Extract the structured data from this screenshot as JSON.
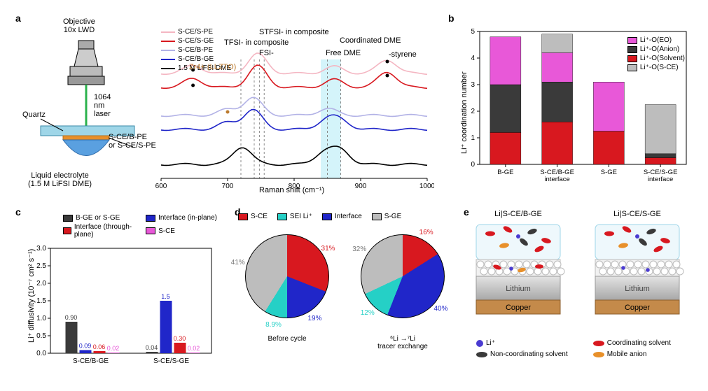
{
  "palette": {
    "pink": "#f4b6c2",
    "red": "#d8181f",
    "lightblue": "#b2b2e6",
    "blue": "#2026c9",
    "black": "#000000",
    "magenta": "#e858d8",
    "darkgray": "#3a3a3a",
    "lightgray": "#bdbdbd",
    "cyan": "#25d0c6",
    "copper": "#c48a4a",
    "lithium": "#b9b9b9",
    "quartz": "#9fd6e8",
    "liquid": "#5aa0e0",
    "llzto": "#bb7a2e",
    "orange": "#e8902a"
  },
  "panel_a": {
    "schematic": {
      "objective": "Objective\n10x LWD",
      "quartz": "Quartz",
      "laser": "1064 nm laser",
      "membrane": "S-CE/B-PE\nor S-CE/S-PE",
      "electrolyte": "Liquid electrolyte\n(1.5 M LiFSI DME)"
    },
    "legend": [
      {
        "label": "S-CE/S-PE",
        "colorKey": "pink"
      },
      {
        "label": "S-CE/S-GE",
        "colorKey": "red"
      },
      {
        "label": "S-CE/B-PE",
        "colorKey": "lightblue"
      },
      {
        "label": "S-CE/B-GE",
        "colorKey": "blue"
      },
      {
        "label": "1.5 M LiFSI DME",
        "colorKey": "black"
      }
    ],
    "annotations": {
      "llzto": "Zr4+ (LLZTO)",
      "fsi": "FSI-",
      "tfsi": "TFSI- in composite",
      "stfsi": "STFSI- in composite",
      "freeDME": "Free DME",
      "coordDME": "Coordinated DME",
      "styrene": "-styrene"
    },
    "xaxis": {
      "label": "Raman shift (cm⁻¹)",
      "min": 600,
      "max": 1000,
      "ticks": [
        600,
        700,
        800,
        900,
        1000
      ]
    },
    "highlight_band": {
      "from": 840,
      "to": 870,
      "fill": "#b8ecf7"
    }
  },
  "panel_b": {
    "ylabel": "Li⁺ coordination number",
    "ylim": [
      0,
      5
    ],
    "ytick_step": 1,
    "categories": [
      "B-GE",
      "S-CE/B-GE\ninterface",
      "S-GE",
      "S-CE/S-GE\ninterface"
    ],
    "series": [
      {
        "name": "Li⁺-O(EO)",
        "colorKey": "magenta"
      },
      {
        "name": "Li⁺-O(Anion)",
        "colorKey": "darkgray"
      },
      {
        "name": "Li⁺-O(Solvent)",
        "colorKey": "red"
      },
      {
        "name": "Li⁺-O(S-CE)",
        "colorKey": "lightgray"
      }
    ],
    "stacks": [
      {
        "solvent": 1.2,
        "anion": 1.8,
        "eo": 1.8,
        "sce": 0
      },
      {
        "solvent": 1.6,
        "anion": 1.5,
        "eo": 1.1,
        "sce": 0.7
      },
      {
        "solvent": 1.25,
        "anion": 0.0,
        "eo": 1.85,
        "sce": 0
      },
      {
        "solvent": 0.25,
        "anion": 0.15,
        "eo": 0.0,
        "sce": 1.85
      }
    ]
  },
  "panel_c": {
    "ylabel": "Li⁺ diffusivity (10⁻⁷ cm² s⁻¹)",
    "ylim": [
      0,
      3.0
    ],
    "ytick_step": 0.5,
    "groups": [
      "S-CE/B-GE",
      "S-CE/S-GE"
    ],
    "series": [
      {
        "name": "B-GE or S-GE",
        "colorKey": "darkgray"
      },
      {
        "name": "Interface (in-plane)",
        "colorKey": "blue"
      },
      {
        "name": "Interface (through-plane)",
        "colorKey": "red"
      },
      {
        "name": "S-CE",
        "colorKey": "magenta"
      }
    ],
    "values": [
      [
        0.9,
        0.09,
        0.06,
        0.02
      ],
      [
        0.04,
        1.5,
        0.3,
        0.02
      ]
    ],
    "labels": [
      [
        "0.90",
        "0.09",
        "0.06",
        "0.02"
      ],
      [
        "0.04",
        "1.5",
        "0.30",
        "0.02"
      ]
    ]
  },
  "panel_d": {
    "legend": [
      {
        "name": "S-CE",
        "colorKey": "red"
      },
      {
        "name": "SEI Li⁺",
        "colorKey": "cyan"
      },
      {
        "name": "Interface",
        "colorKey": "blue"
      },
      {
        "name": "S-GE",
        "colorKey": "lightgray"
      }
    ],
    "pies": [
      {
        "title": "Before cycle",
        "slices": [
          {
            "label": "31%",
            "pct": 31,
            "colorKey": "red"
          },
          {
            "label": "19%",
            "pct": 19,
            "colorKey": "blue"
          },
          {
            "label": "8.9%",
            "pct": 8.9,
            "colorKey": "cyan"
          },
          {
            "label": "41%",
            "pct": 41.1,
            "colorKey": "lightgray"
          }
        ]
      },
      {
        "title": "⁶Li →⁷Li\ntracer exchange",
        "slices": [
          {
            "label": "16%",
            "pct": 16,
            "colorKey": "red"
          },
          {
            "label": "40%",
            "pct": 40,
            "colorKey": "blue"
          },
          {
            "label": "12%",
            "pct": 12,
            "colorKey": "cyan"
          },
          {
            "label": "32%",
            "pct": 32,
            "colorKey": "lightgray"
          }
        ]
      }
    ]
  },
  "panel_e": {
    "titles": [
      "Li|S-CE/B-GE",
      "Li|S-CE/S-GE"
    ],
    "layers": {
      "lithium": "Lithium",
      "copper": "Copper"
    },
    "legend": [
      {
        "name": "Li⁺",
        "type": "dot",
        "color": "#4a3bd1"
      },
      {
        "name": "Coordinating solvent",
        "type": "oval",
        "color": "#d8181f"
      },
      {
        "name": "Non-coordinating solvent",
        "type": "oval",
        "color": "#3a3a3a"
      },
      {
        "name": "Mobile anion",
        "type": "oval",
        "color": "#e8902a"
      }
    ]
  }
}
